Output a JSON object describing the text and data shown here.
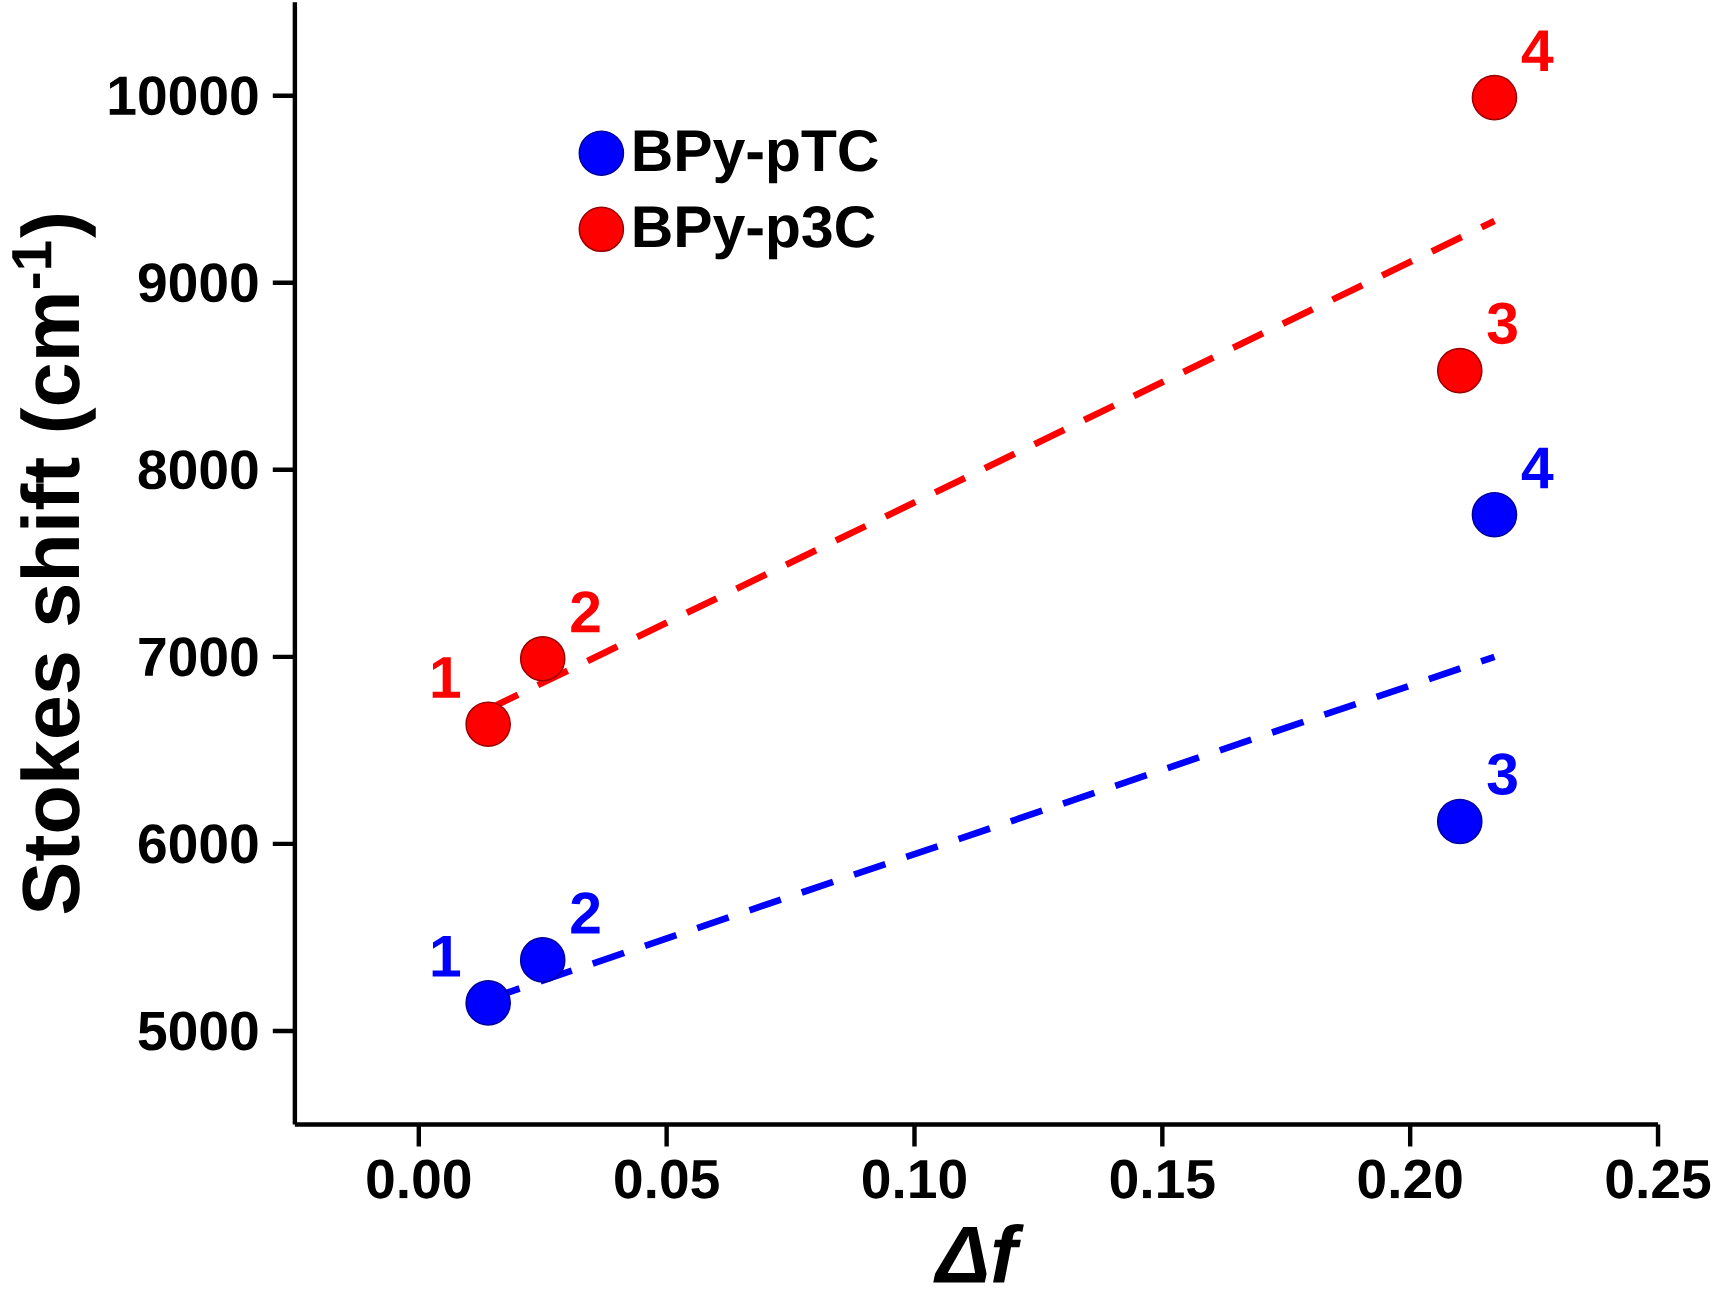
{
  "chart_data": {
    "type": "scatter",
    "xlabel": "Δf",
    "ylabel": "Stokes shift (cm$^{-1}$)",
    "xlim": [
      -0.025,
      0.25
    ],
    "ylim": [
      4500,
      10500
    ],
    "xticks": [
      {
        "value": 0,
        "label": "0.00"
      },
      {
        "value": 0.05,
        "label": "0.05"
      },
      {
        "value": 0.1,
        "label": "0.10"
      },
      {
        "value": 0.15,
        "label": "0.15"
      },
      {
        "value": 0.2,
        "label": "0.20"
      },
      {
        "value": 0.25,
        "label": "0.25"
      }
    ],
    "yticks": [
      5000,
      6000,
      7000,
      8000,
      9000,
      10000
    ],
    "legend": "top left",
    "grid": false,
    "series": [
      {
        "name": "BPy-pTC",
        "color": "#0000ff",
        "marker": "circle",
        "x": [
          0.014,
          0.025,
          0.21,
          0.217
        ],
        "values": [
          5150,
          5380,
          6120,
          7760
        ]
      },
      {
        "name": "BPy-p3C",
        "color": "#ff0000",
        "marker": "circle",
        "x": [
          0.014,
          0.025,
          0.21,
          0.217
        ],
        "values": [
          6640,
          6990,
          8530,
          9990
        ]
      },
      {
        "type": "line",
        "color": "#0000ff",
        "line_style": "dashed",
        "marker": "none",
        "x": [
          0.014,
          0.217
        ],
        "values": [
          5170,
          7000
        ]
      },
      {
        "type": "line",
        "color": "#ff0000",
        "line_style": "dashed",
        "marker": "none",
        "x": [
          0.014,
          0.217
        ],
        "values": [
          6720,
          9330
        ]
      }
    ],
    "annotations": [
      {
        "text": "1",
        "x": 0.014,
        "y": 5150
      },
      {
        "text": "2",
        "x": 0.025,
        "y": 5380
      },
      {
        "text": "3",
        "x": 0.21,
        "y": 6120
      },
      {
        "text": "4",
        "x": 0.217,
        "y": 7760
      },
      {
        "text": "1",
        "x": 0.014,
        "y": 6640
      },
      {
        "text": "2",
        "x": 0.025,
        "y": 6990
      },
      {
        "text": "3",
        "x": 0.21,
        "y": 8530
      },
      {
        "text": "4",
        "x": 0.217,
        "y": 9990
      }
    ]
  }
}
